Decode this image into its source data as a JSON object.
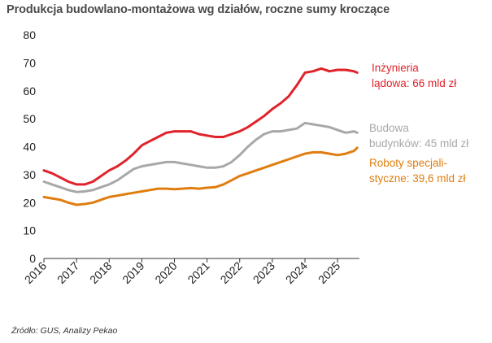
{
  "title": "Produkcja budowlano-montażowa wg działów, roczne sumy kroczące",
  "source": "Źródło: GUS, Analizy Pekao",
  "chart_data": {
    "type": "line",
    "title": "Produkcja budowlano-montażowa wg działów, roczne sumy kroczące",
    "xlabel": "",
    "ylabel": "",
    "ylim": [
      0,
      80
    ],
    "yticks": [
      0,
      10,
      20,
      30,
      40,
      50,
      60,
      70,
      80
    ],
    "xlim": [
      2016.0,
      2025.67
    ],
    "xticks": [
      2016,
      2017,
      2018,
      2019,
      2020,
      2021,
      2022,
      2023,
      2024,
      2025
    ],
    "grid": false,
    "legend": "direct labels at line ends (right)",
    "series": [
      {
        "name": "Inżynieria lądowa",
        "label_lines": [
          "Inżynieria",
          "lądowa: 66 mld zł"
        ],
        "color": "#e0232b",
        "x": [
          2016.0,
          2016.25,
          2016.5,
          2016.75,
          2017.0,
          2017.25,
          2017.5,
          2017.75,
          2018.0,
          2018.25,
          2018.5,
          2018.75,
          2019.0,
          2019.25,
          2019.5,
          2019.75,
          2020.0,
          2020.25,
          2020.5,
          2020.75,
          2021.0,
          2021.25,
          2021.5,
          2021.75,
          2022.0,
          2022.25,
          2022.5,
          2022.75,
          2023.0,
          2023.25,
          2023.5,
          2023.75,
          2024.0,
          2024.25,
          2024.5,
          2024.75,
          2025.0,
          2025.25,
          2025.5,
          2025.6
        ],
        "values": [
          31.5,
          30.5,
          29.0,
          27.5,
          26.5,
          26.5,
          27.5,
          29.5,
          31.5,
          33.0,
          35.0,
          37.5,
          40.5,
          42.0,
          43.5,
          45.0,
          45.5,
          45.5,
          45.5,
          44.5,
          44.0,
          43.5,
          43.5,
          44.5,
          45.5,
          47.0,
          49.0,
          51.0,
          53.5,
          55.5,
          58.0,
          62.0,
          66.5,
          67.0,
          68.0,
          67.0,
          67.5,
          67.5,
          67.0,
          66.5
        ]
      },
      {
        "name": "Budowa budynków",
        "label_lines": [
          "Budowa",
          "budynków: 45 mld zł"
        ],
        "color": "#a8a8a8",
        "x": [
          2016.0,
          2016.25,
          2016.5,
          2016.75,
          2017.0,
          2017.25,
          2017.5,
          2017.75,
          2018.0,
          2018.25,
          2018.5,
          2018.75,
          2019.0,
          2019.25,
          2019.5,
          2019.75,
          2020.0,
          2020.25,
          2020.5,
          2020.75,
          2021.0,
          2021.25,
          2021.5,
          2021.75,
          2022.0,
          2022.25,
          2022.5,
          2022.75,
          2023.0,
          2023.25,
          2023.5,
          2023.75,
          2024.0,
          2024.25,
          2024.5,
          2024.75,
          2025.0,
          2025.25,
          2025.5,
          2025.6
        ],
        "values": [
          27.5,
          26.5,
          25.5,
          24.5,
          23.8,
          24.0,
          24.5,
          25.5,
          26.5,
          28.0,
          30.0,
          32.0,
          33.0,
          33.5,
          34.0,
          34.5,
          34.5,
          34.0,
          33.5,
          33.0,
          32.5,
          32.5,
          33.0,
          34.5,
          37.0,
          40.0,
          42.5,
          44.5,
          45.5,
          45.5,
          46.0,
          46.5,
          48.5,
          48.0,
          47.5,
          47.0,
          46.0,
          45.0,
          45.5,
          45.0
        ]
      },
      {
        "name": "Roboty specjalistyczne",
        "label_lines": [
          "Roboty specjali-",
          "styczne: 39,6 mld zł"
        ],
        "color": "#e07d10",
        "x": [
          2016.0,
          2016.25,
          2016.5,
          2016.75,
          2017.0,
          2017.25,
          2017.5,
          2017.75,
          2018.0,
          2018.25,
          2018.5,
          2018.75,
          2019.0,
          2019.25,
          2019.5,
          2019.75,
          2020.0,
          2020.25,
          2020.5,
          2020.75,
          2021.0,
          2021.25,
          2021.5,
          2021.75,
          2022.0,
          2022.25,
          2022.5,
          2022.75,
          2023.0,
          2023.25,
          2023.5,
          2023.75,
          2024.0,
          2024.25,
          2024.5,
          2024.75,
          2025.0,
          2025.25,
          2025.5,
          2025.6
        ],
        "values": [
          22.0,
          21.5,
          21.0,
          20.0,
          19.2,
          19.5,
          20.0,
          21.0,
          22.0,
          22.5,
          23.0,
          23.5,
          24.0,
          24.5,
          25.0,
          25.0,
          24.8,
          25.0,
          25.2,
          25.0,
          25.3,
          25.5,
          26.5,
          28.0,
          29.5,
          30.5,
          31.5,
          32.5,
          33.5,
          34.5,
          35.5,
          36.5,
          37.5,
          38.0,
          38.0,
          37.5,
          37.0,
          37.5,
          38.5,
          39.6
        ]
      }
    ]
  }
}
